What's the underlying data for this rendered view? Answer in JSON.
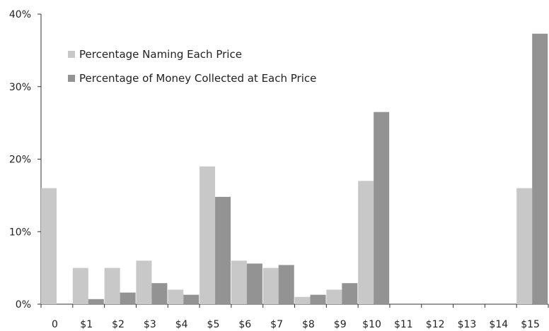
{
  "chart_data": {
    "type": "bar",
    "categories": [
      "0",
      "$1",
      "$2",
      "$3",
      "$4",
      "$5",
      "$6",
      "$7",
      "$8",
      "$9",
      "$10",
      "$11",
      "$12",
      "$13",
      "$14",
      "$15"
    ],
    "series": [
      {
        "name": "Percentage Naming Each Price",
        "color": "#c8c8c8",
        "values": [
          16,
          5,
          5,
          6,
          2,
          19,
          6,
          5,
          1,
          2,
          17,
          0,
          0,
          0,
          0,
          16
        ]
      },
      {
        "name": "Percentage of Money Collected at Each Price",
        "color": "#939393",
        "values": [
          0,
          0.7,
          1.6,
          2.9,
          1.3,
          14.8,
          5.6,
          5.4,
          1.3,
          2.9,
          26.5,
          0,
          0,
          0,
          0,
          37.3
        ]
      }
    ],
    "ylim": [
      0,
      40
    ],
    "yticks": [
      "0%",
      "10%",
      "20%",
      "30%",
      "40%"
    ],
    "ytick_values": [
      0,
      10,
      20,
      30,
      40
    ],
    "legend_position": "top-left",
    "grid": false
  }
}
